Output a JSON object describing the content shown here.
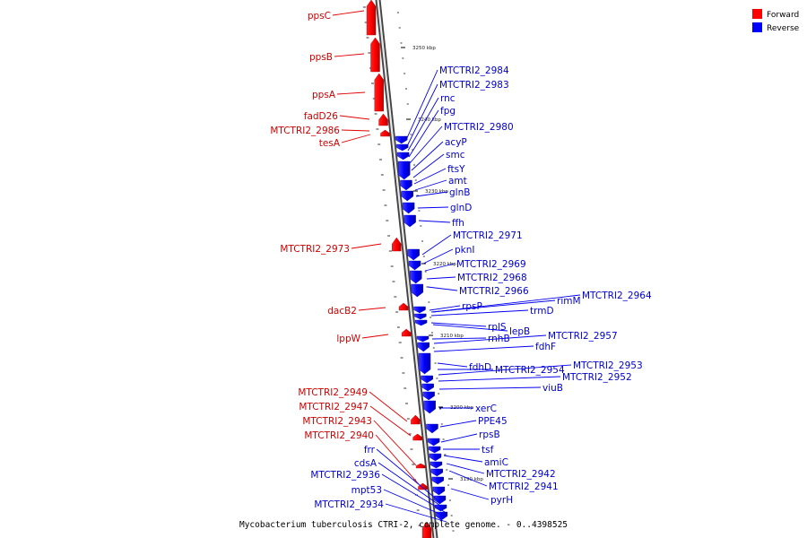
{
  "legend": {
    "forward": {
      "label": "Forward",
      "color": "#ff0000"
    },
    "reverse": {
      "label": "Reverse",
      "color": "#0000ff"
    }
  },
  "footer": {
    "caption": "Mycobacterium tuberculosis CTRI-2, complete genome. - 0..4398525"
  },
  "ticks": [
    "3250 kbp",
    "3240 kbp",
    "3230 kbp",
    "3220 kbp",
    "3210 kbp",
    "3200 kbp",
    "3190 kbp"
  ],
  "forward_genes": [
    "ppsC",
    "ppsB",
    "ppsA",
    "fadD26",
    "MTCTRI2_2986",
    "tesA",
    "MTCTRI2_2973",
    "dacB2",
    "lppW",
    "MTCTRI2_2949",
    "MTCTRI2_2947",
    "MTCTRI2_2943",
    "MTCTRI2_2940"
  ],
  "reverse_genes": [
    "MTCTRI2_2984",
    "MTCTRI2_2983",
    "rnc",
    "fpg",
    "MTCTRI2_2980",
    "acyP",
    "smc",
    "ftsY",
    "amt",
    "glnB",
    "glnD",
    "ffh",
    "MTCTRI2_2971",
    "pknI",
    "MTCTRI2_2969",
    "MTCTRI2_2968",
    "MTCTRI2_2966",
    "rpsP",
    "trmD",
    "rimM",
    "MTCTRI2_2964",
    "rplS",
    "lepB",
    "rnhB",
    "MTCTRI2_2957",
    "fdhF",
    "fdhD",
    "MTCTRI2_2954",
    "MTCTRI2_2953",
    "MTCTRI2_2952",
    "viuB",
    "xerC",
    "PPE45",
    "rpsB",
    "tsf",
    "amiC",
    "MTCTRI2_2942",
    "MTCTRI2_2941",
    "pyrH",
    "frr",
    "cdsA",
    "MTCTRI2_2936",
    "mpt53",
    "MTCTRI2_2934"
  ]
}
